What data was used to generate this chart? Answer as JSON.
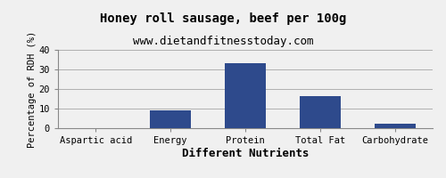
{
  "title": "Honey roll sausage, beef per 100g",
  "subtitle": "www.dietandfitnesstoday.com",
  "xlabel": "Different Nutrients",
  "ylabel": "Percentage of RDH (%)",
  "categories": [
    "Aspartic acid",
    "Energy",
    "Protein",
    "Total Fat",
    "Carbohydrate"
  ],
  "values": [
    0.0,
    9.2,
    33.3,
    16.4,
    2.4
  ],
  "bar_color": "#2e4a8c",
  "ylim": [
    0,
    40
  ],
  "yticks": [
    0,
    10,
    20,
    30,
    40
  ],
  "background_color": "#f0f0f0",
  "plot_background": "#f0f0f0",
  "title_fontsize": 10,
  "subtitle_fontsize": 9,
  "xlabel_fontsize": 9,
  "ylabel_fontsize": 7.5,
  "tick_fontsize": 7.5,
  "grid_color": "#b0b0b0",
  "bar_width": 0.55
}
